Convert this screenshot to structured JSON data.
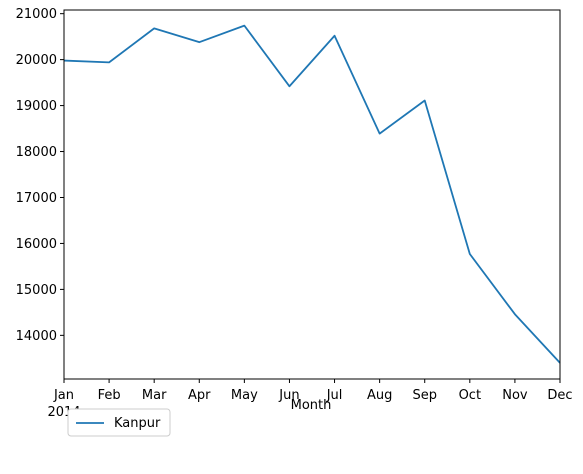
{
  "chart_data": {
    "type": "line",
    "x": [
      "2014-01",
      "2014-02",
      "2014-03",
      "2014-04",
      "2014-05",
      "2014-06",
      "2014-07",
      "2014-08",
      "2014-09",
      "2014-10",
      "2014-11",
      "2014-12"
    ],
    "x_tick_labels": [
      "Jan",
      "Feb",
      "Mar",
      "Apr",
      "May",
      "Jun",
      "Jul",
      "Aug",
      "Sep",
      "Oct",
      "Nov",
      "Dec"
    ],
    "x_year_label": "2014",
    "series": [
      {
        "name": "Kanpur",
        "color": "#1f77b4",
        "values": [
          19980,
          19940,
          20680,
          20380,
          20740,
          19420,
          20520,
          18390,
          19110,
          15770,
          14460,
          13400
        ]
      }
    ],
    "title": "",
    "xlabel": "Month",
    "ylabel": "",
    "ylim": [
      13050,
      21080
    ],
    "yticks": [
      14000,
      15000,
      16000,
      17000,
      18000,
      19000,
      20000,
      21000
    ],
    "grid": false,
    "legend_position": "below-left"
  }
}
